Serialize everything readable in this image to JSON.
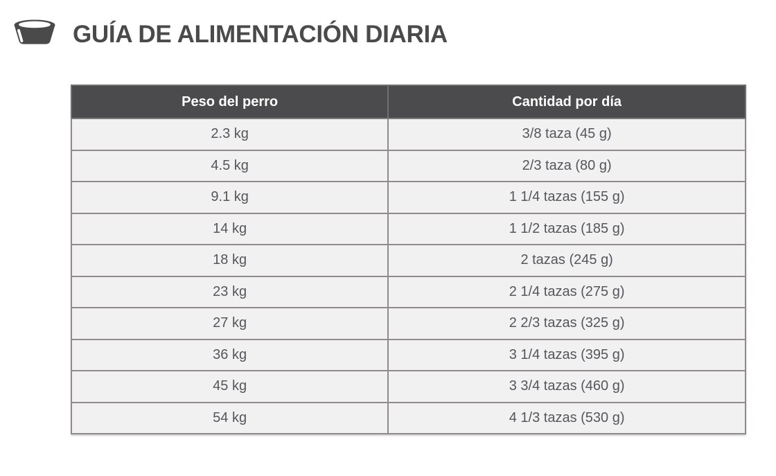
{
  "header": {
    "title": "GUÍA DE ALIMENTACIÓN DIARIA",
    "icon": "dog-bowl-icon"
  },
  "table": {
    "columns": [
      "Peso del perro",
      "Cantidad por día"
    ],
    "rows": [
      {
        "weight": "2.3 kg",
        "amount": "3/8 taza (45 g)"
      },
      {
        "weight": "4.5 kg",
        "amount": "2/3 taza (80 g)"
      },
      {
        "weight": "9.1 kg",
        "amount": "1 1/4 tazas (155 g)"
      },
      {
        "weight": "14 kg",
        "amount": "1 1/2 tazas (185 g)"
      },
      {
        "weight": "18 kg",
        "amount": "2 tazas (245 g)"
      },
      {
        "weight": "23 kg",
        "amount": "2 1/4 tazas (275 g)"
      },
      {
        "weight": "27 kg",
        "amount": "2 2/3 tazas (325 g)"
      },
      {
        "weight": "36 kg",
        "amount": "3 1/4 tazas (395 g)"
      },
      {
        "weight": "45 kg",
        "amount": "3 3/4 tazas (460 g)"
      },
      {
        "weight": "54 kg",
        "amount": "4 1/3 tazas (530 g)"
      }
    ]
  },
  "colors": {
    "title_text": "#4a4a4a",
    "header_bg": "#4b4b4d",
    "header_text": "#ffffff",
    "row_bg": "#f1f1f2",
    "cell_text": "#55565b",
    "border": "#8f8b8d"
  }
}
